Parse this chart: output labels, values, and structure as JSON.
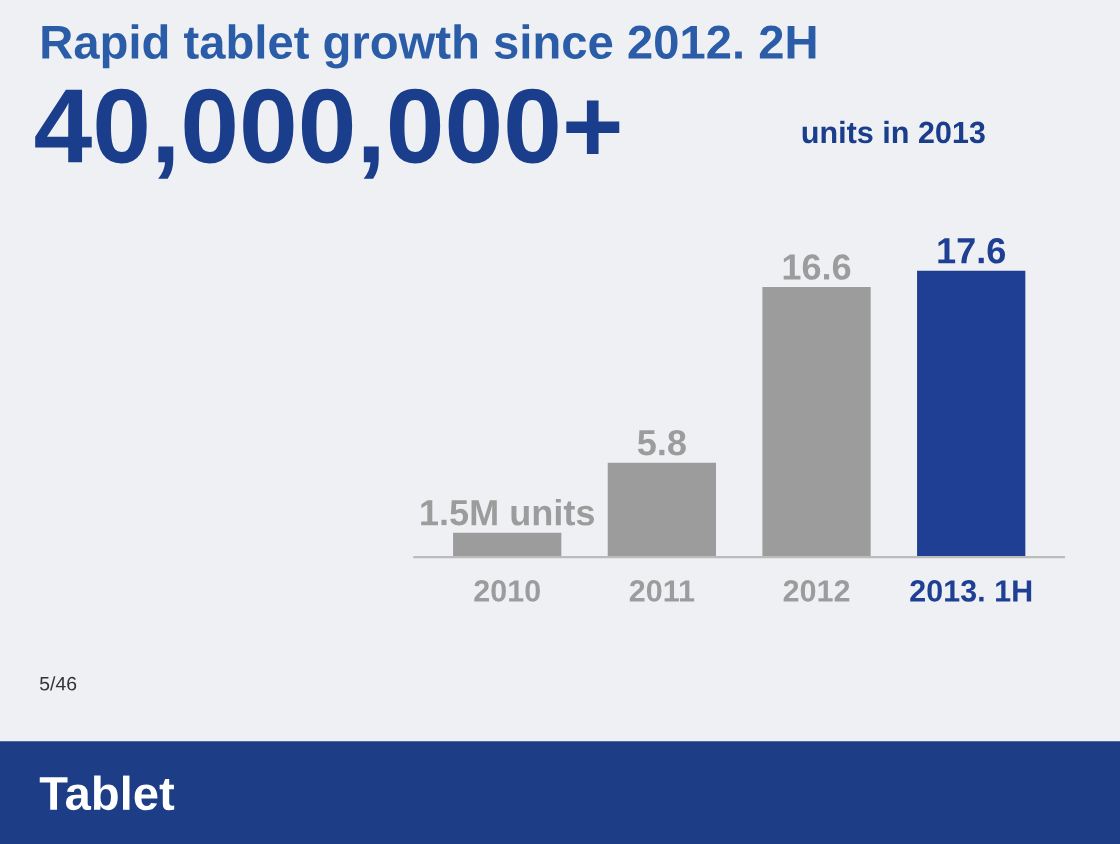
{
  "chart_data": {
    "type": "bar",
    "title": "Rapid tablet growth since 2012. 2H",
    "subtitle": "40,000,000+",
    "annotations": [
      "units in 2013",
      "5/46",
      "Tablet"
    ],
    "categories": [
      "2010",
      "2011",
      "2012",
      "2013. 1H"
    ],
    "values": [
      1.5,
      5.8,
      16.6,
      17.6
    ],
    "colors": [
      "#9c9c9c",
      "#9c9c9c",
      "#9c9c9c",
      "#1f3f94"
    ],
    "value_labels": [
      "1.5M units",
      "5.8",
      "16.6",
      "17.6"
    ],
    "grid": false,
    "legend": false
  }
}
